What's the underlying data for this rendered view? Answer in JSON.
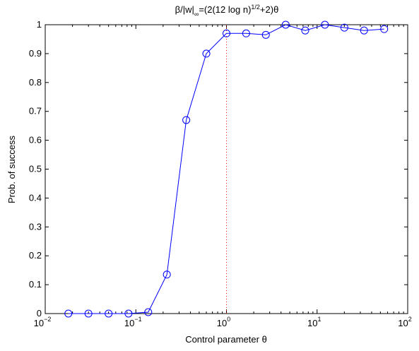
{
  "chart_data": {
    "type": "line",
    "title": {
      "prefix": "β/|w|",
      "sub": "∞",
      "mid": "=(2(12 log n)",
      "sup": "1/2",
      "suffix": "+2)θ"
    },
    "xlabel": "Control parameter θ",
    "ylabel": "Prob. of success",
    "xscale": "log",
    "xlim": [
      0.01,
      100
    ],
    "ylim": [
      0,
      1
    ],
    "grid": false,
    "x_ticks": [
      {
        "base": "10",
        "exp": "−2",
        "value": 0.01
      },
      {
        "base": "10",
        "exp": "−1",
        "value": 0.1
      },
      {
        "base": "10",
        "exp": "0",
        "value": 1
      },
      {
        "base": "10",
        "exp": "1",
        "value": 10
      },
      {
        "base": "10",
        "exp": "2",
        "value": 100
      }
    ],
    "y_ticks": [
      "0",
      "0.1",
      "0.2",
      "0.3",
      "0.4",
      "0.5",
      "0.6",
      "0.7",
      "0.8",
      "0.9",
      "1"
    ],
    "series": [
      {
        "color": "#0000ff",
        "marker": "circle",
        "x": [
          0.018,
          0.03,
          0.05,
          0.083,
          0.137,
          0.22,
          0.36,
          0.6,
          1.0,
          1.65,
          2.72,
          4.5,
          7.4,
          12.2,
          20,
          33,
          55
        ],
        "y": [
          0,
          0,
          0,
          0,
          0.005,
          0.135,
          0.67,
          0.9,
          0.97,
          0.97,
          0.965,
          1.0,
          0.98,
          1.0,
          0.99,
          0.98,
          0.985
        ]
      }
    ],
    "reference_line": {
      "x": 1,
      "color": "#ff0000",
      "style": "dotted"
    }
  }
}
